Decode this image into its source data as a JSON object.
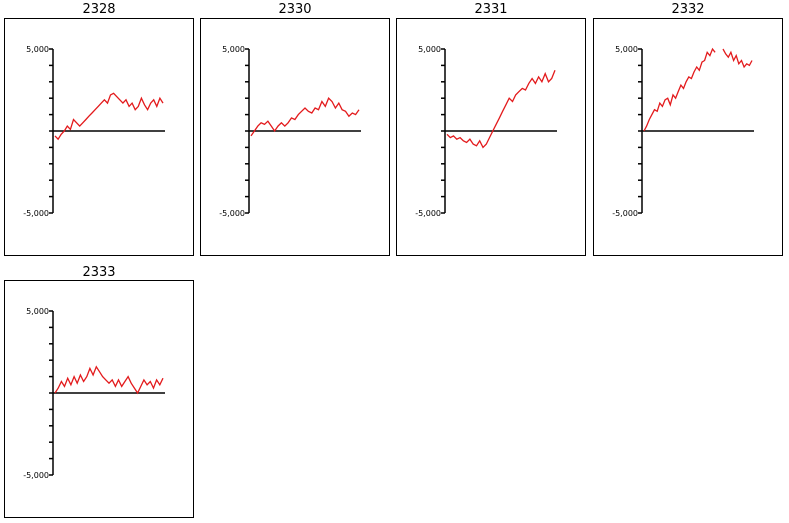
{
  "chart_data": [
    {
      "type": "line",
      "title": "2328",
      "ylim": [
        -5000,
        5000
      ],
      "ytick_labels": [
        "5,000",
        "-5,000"
      ],
      "series": [
        {
          "color": "#e31a1c",
          "values": [
            -300,
            -500,
            -200,
            0,
            300,
            100,
            700,
            500,
            300,
            500,
            700,
            900,
            1100,
            1300,
            1500,
            1700,
            1900,
            1700,
            2200,
            2300,
            2100,
            1900,
            1700,
            1900,
            1500,
            1700,
            1300,
            1500,
            2000,
            1600,
            1300,
            1700,
            1900,
            1500,
            2000,
            1700
          ]
        }
      ]
    },
    {
      "type": "line",
      "title": "2330",
      "ylim": [
        -5000,
        5000
      ],
      "ytick_labels": [
        "5,000",
        "-5,000"
      ],
      "series": [
        {
          "color": "#e31a1c",
          "values": [
            -300,
            0,
            300,
            500,
            400,
            600,
            300,
            0,
            300,
            500,
            300,
            500,
            800,
            700,
            1000,
            1200,
            1400,
            1200,
            1100,
            1400,
            1300,
            1800,
            1500,
            2000,
            1800,
            1400,
            1700,
            1300,
            1200,
            900,
            1100,
            1000,
            1300
          ]
        }
      ]
    },
    {
      "type": "line",
      "title": "2331",
      "ylim": [
        -5000,
        5000
      ],
      "ytick_labels": [
        "5,000",
        "-5,000"
      ],
      "series": [
        {
          "color": "#e31a1c",
          "values": [
            -200,
            -400,
            -300,
            -500,
            -400,
            -600,
            -700,
            -500,
            -800,
            -900,
            -600,
            -1000,
            -800,
            -400,
            0,
            400,
            800,
            1200,
            1600,
            2000,
            1800,
            2200,
            2400,
            2600,
            2500,
            2900,
            3200,
            2900,
            3300,
            3000,
            3500,
            3000,
            3200,
            3700
          ]
        }
      ]
    },
    {
      "type": "line",
      "title": "2332",
      "ylim": [
        -5000,
        5000
      ],
      "ytick_labels": [
        "5,000",
        "-5,000"
      ],
      "series": [
        {
          "color": "#e31a1c",
          "values": [
            0,
            300,
            700,
            1000,
            1300,
            1200,
            1700,
            1500,
            1900,
            2000,
            1600,
            2200,
            2000,
            2400,
            2800,
            2600,
            3000,
            3300,
            3200,
            3600,
            3900,
            3700,
            4200,
            4300,
            4800,
            4600,
            5000,
            4800,
            null,
            null,
            5000,
            4700,
            4500,
            4800,
            4300,
            4600,
            4100,
            4300,
            3900,
            4100,
            4000,
            4300
          ]
        }
      ]
    },
    {
      "type": "line",
      "title": "2333",
      "ylim": [
        -5000,
        5000
      ],
      "ytick_labels": [
        "5,000",
        "-5,000"
      ],
      "series": [
        {
          "color": "#e31a1c",
          "values": [
            0,
            300,
            700,
            400,
            900,
            500,
            1000,
            600,
            1100,
            700,
            1000,
            1500,
            1100,
            1600,
            1300,
            1000,
            800,
            600,
            800,
            400,
            800,
            400,
            700,
            1000,
            600,
            300,
            0,
            400,
            800,
            500,
            700,
            300,
            800,
            500,
            900
          ]
        }
      ]
    }
  ]
}
